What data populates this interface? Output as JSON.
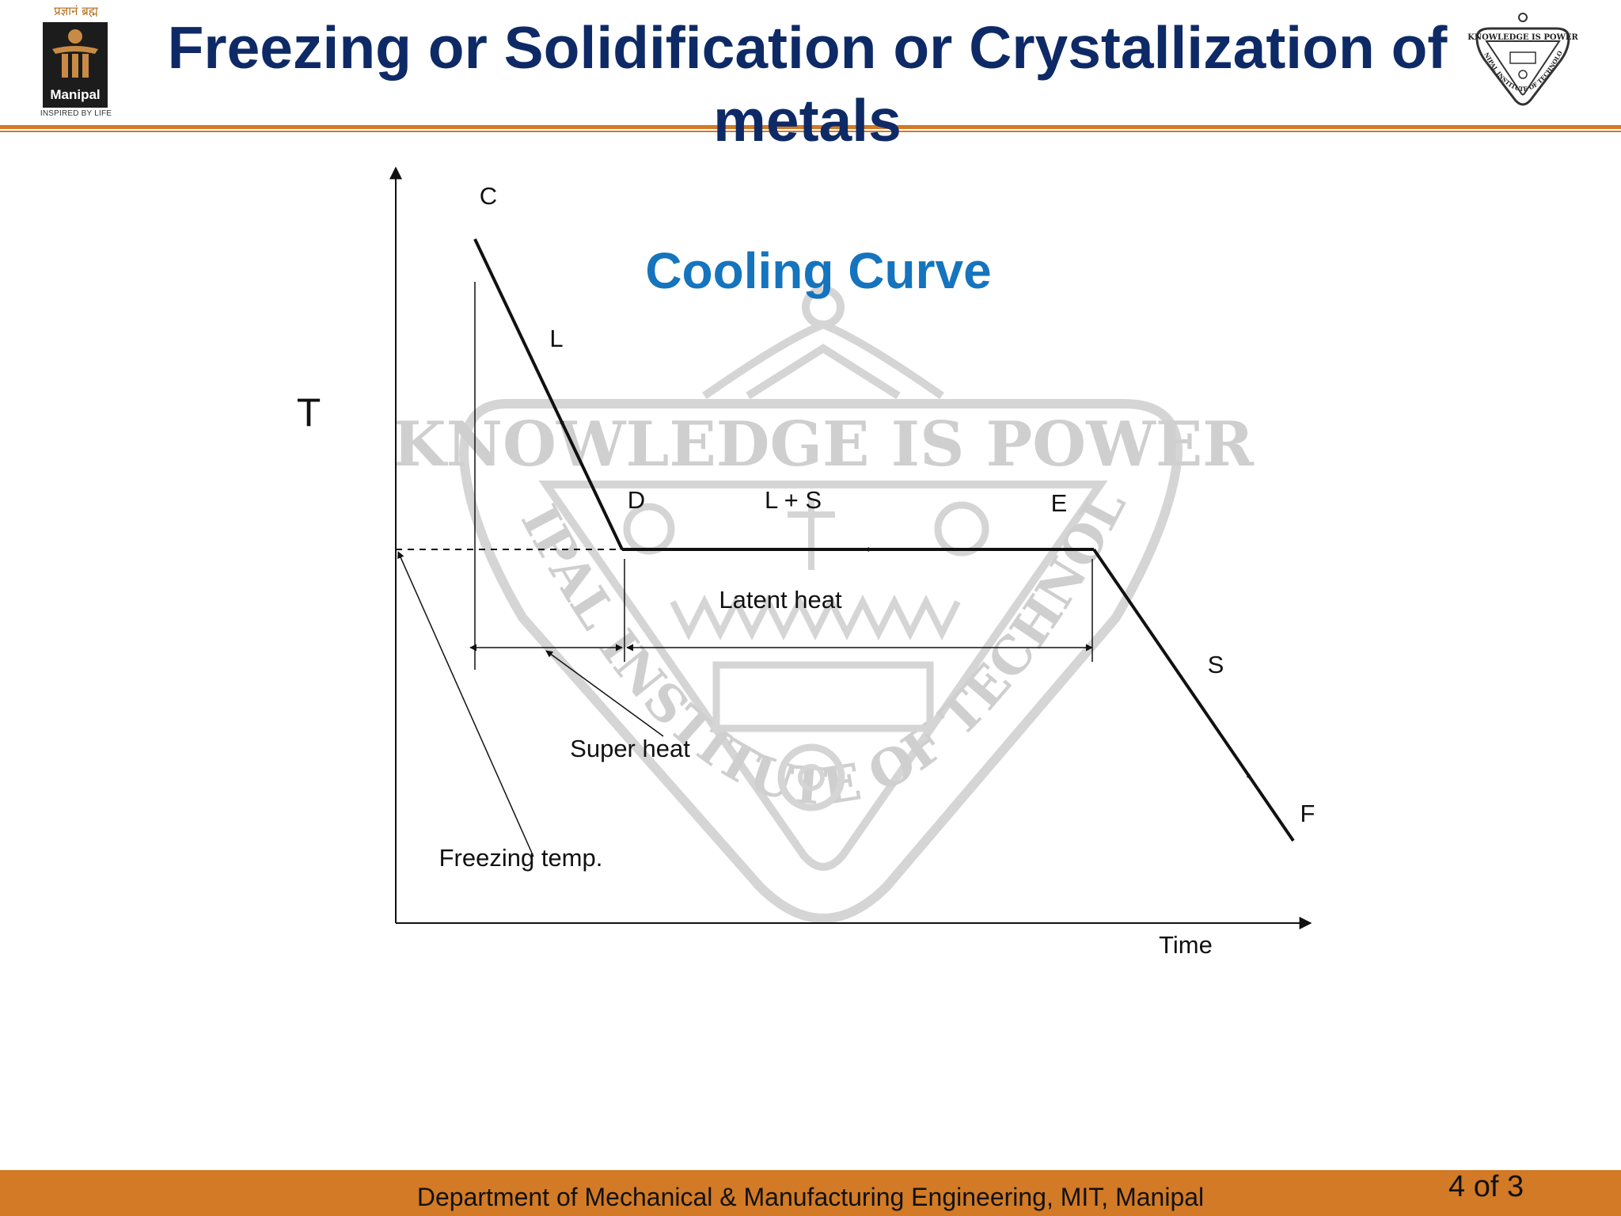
{
  "slide": {
    "title": "Freezing or Solidification or Crystallization of metals",
    "footer": "Department of Mechanical & Manufacturing Engineering, MIT, Manipal",
    "page_number": "4 of 3"
  },
  "logos": {
    "left": {
      "tagline_top": "प्रज्ञानं ब्रह्म",
      "brand": "Manipal",
      "tagline_bottom": "INSPIRED BY LIFE"
    },
    "right": {
      "motto": "KNOWLEDGE IS POWER",
      "institute": "MANIPAL INSTITUTE OF TECHNOLOGY"
    }
  },
  "watermark": {
    "motto": "KNOWLEDGE IS POWER",
    "institute": "MANIPAL INSTITUTE OF TECHNOLOGY"
  },
  "diagram": {
    "heading": "Cooling Curve",
    "y_axis_label": "T",
    "x_axis_label": "Time",
    "points": {
      "c": "C",
      "d": "D",
      "e": "E",
      "f": "F"
    },
    "phases": {
      "liquid": "L",
      "mixed": "L + S",
      "solid": "S"
    },
    "annotations": {
      "latent_heat": "Latent heat",
      "super_heat": "Super heat",
      "freezing_temp": "Freezing temp."
    }
  },
  "colors": {
    "title": "#0e2a66",
    "heading": "#1574bd",
    "accent": "#d27a26",
    "watermark": "#b3b3b3"
  }
}
